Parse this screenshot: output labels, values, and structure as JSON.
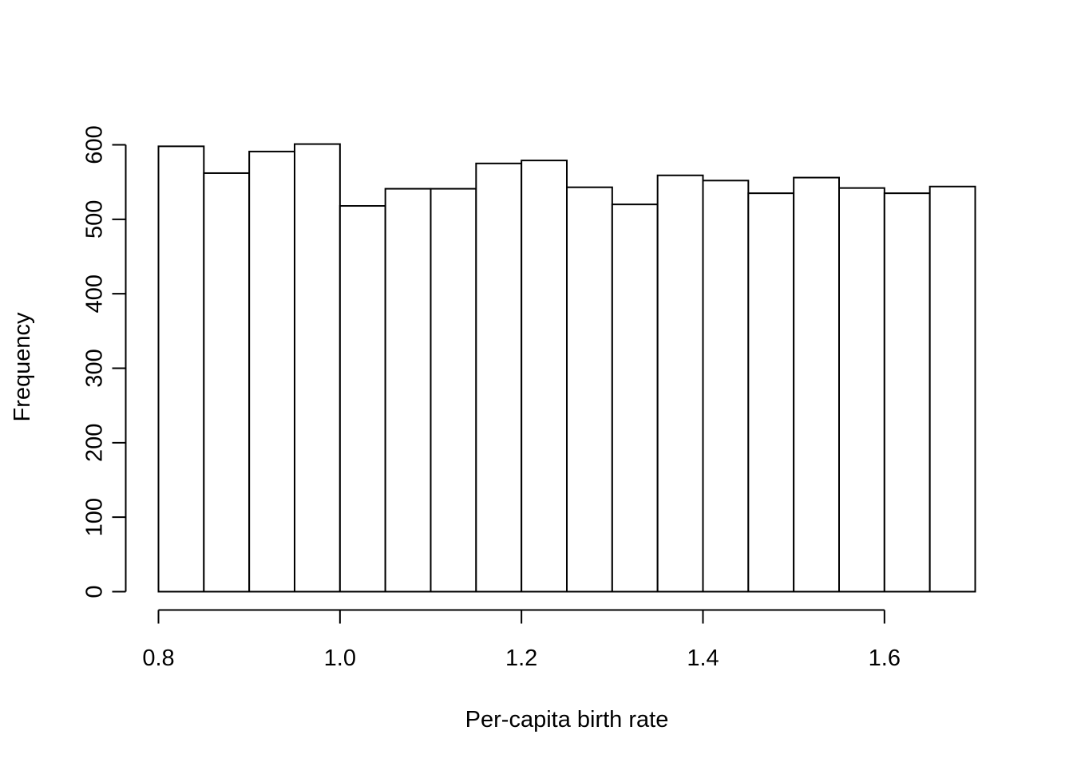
{
  "chart_data": {
    "type": "bar",
    "subtype": "histogram",
    "title": "",
    "xlabel": "Per-capita birth rate",
    "ylabel": "Frequency",
    "bin_edges": [
      0.8,
      0.85,
      0.9,
      0.95,
      1.0,
      1.05,
      1.1,
      1.15,
      1.2,
      1.25,
      1.3,
      1.35,
      1.4,
      1.45,
      1.5,
      1.55,
      1.6,
      1.65,
      1.7
    ],
    "values": [
      598,
      562,
      591,
      601,
      518,
      541,
      541,
      575,
      579,
      543,
      520,
      559,
      552,
      535,
      556,
      542,
      535,
      544
    ],
    "xlim": [
      0.8,
      1.7
    ],
    "ylim": [
      0,
      600
    ],
    "x_ticks": [
      0.8,
      1.0,
      1.2,
      1.4,
      1.6
    ],
    "x_tick_labels": [
      "0.8",
      "1.0",
      "1.2",
      "1.4",
      "1.6"
    ],
    "y_ticks": [
      0,
      100,
      200,
      300,
      400,
      500,
      600
    ],
    "y_tick_labels": [
      "0",
      "100",
      "200",
      "300",
      "400",
      "500",
      "600"
    ],
    "bar_fill": "#ffffff",
    "bar_stroke": "#000000",
    "grid": false,
    "legend": "none"
  }
}
